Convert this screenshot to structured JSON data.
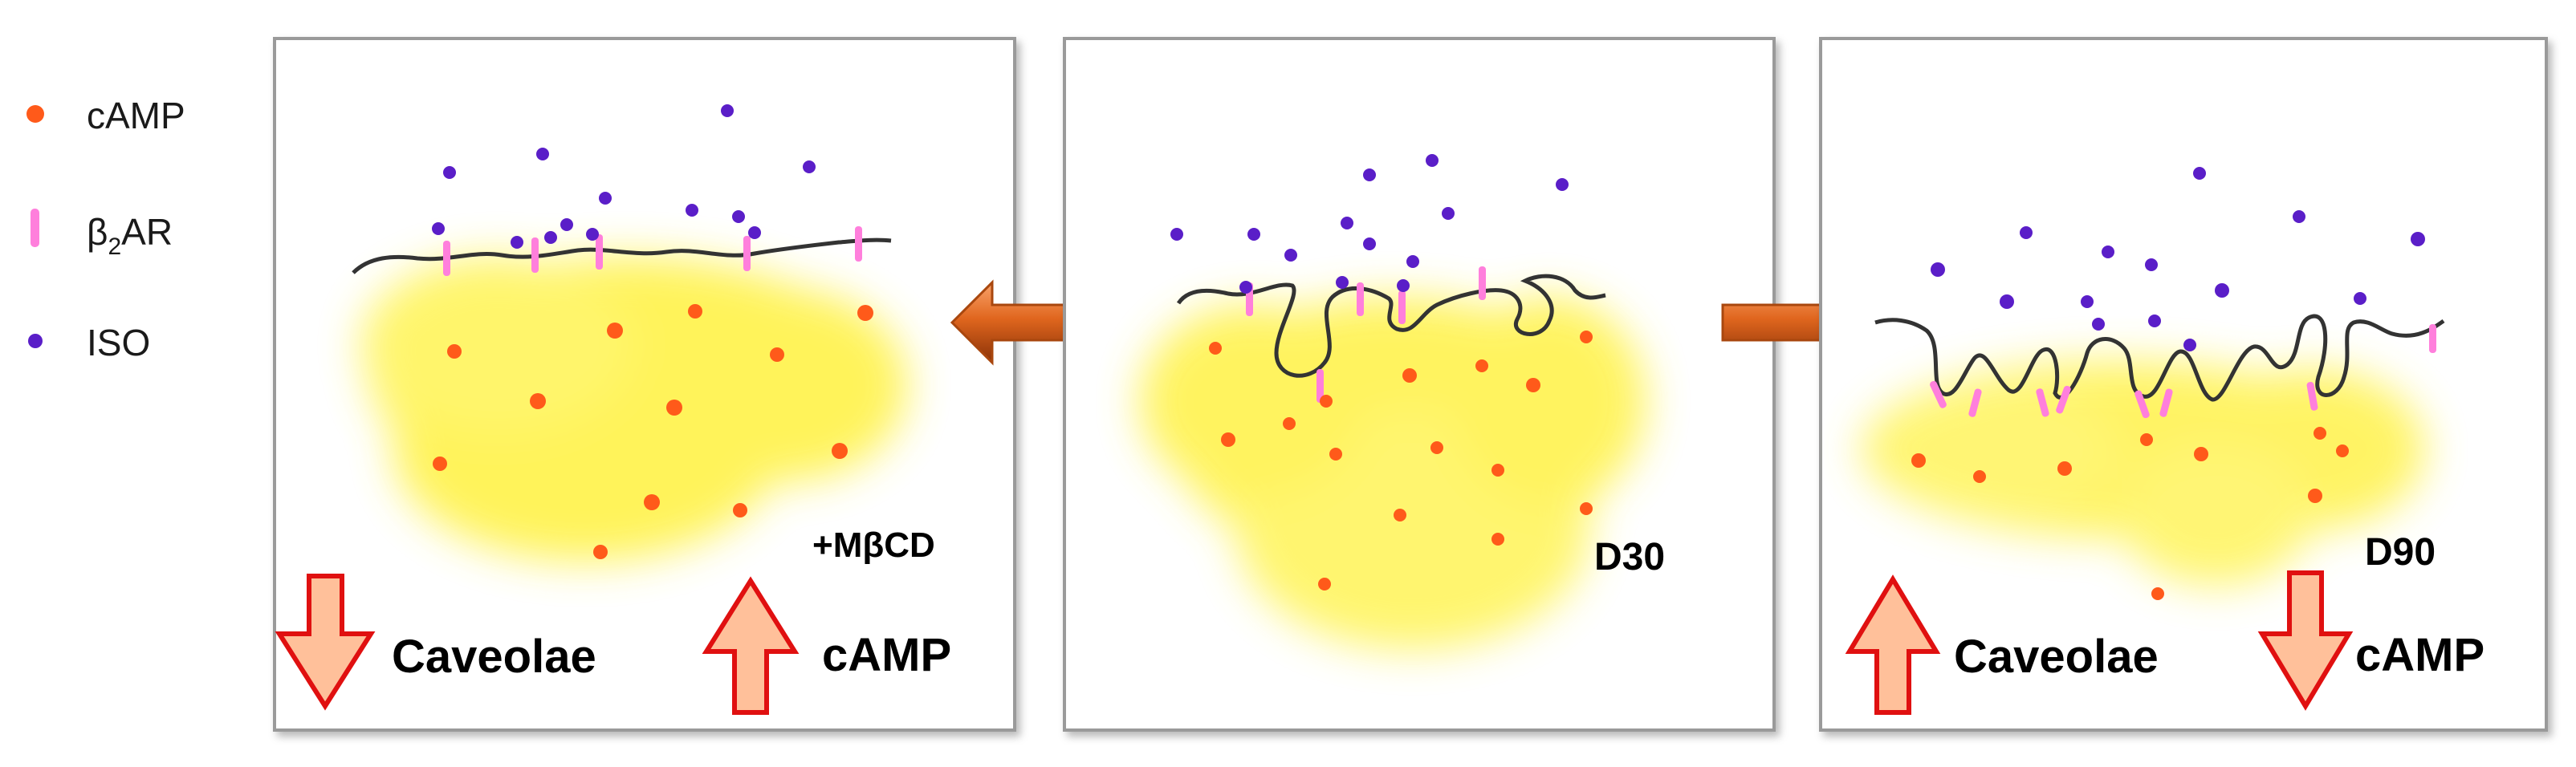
{
  "legend": {
    "camp_label": "cAMP",
    "b2ar_prefix": "β",
    "b2ar_sub": "2",
    "b2ar_suffix": "AR",
    "iso_label": "ISO"
  },
  "panels": {
    "left": {
      "condition_label": "+MβCD",
      "caveolae_label": "Caveolae",
      "camp_label": "cAMP",
      "caveolae_direction": "down",
      "camp_direction": "up"
    },
    "middle": {
      "condition_label": "D30"
    },
    "right": {
      "condition_label": "D90",
      "caveolae_label": "Caveolae",
      "camp_label": "cAMP",
      "caveolae_direction": "up",
      "camp_direction": "down"
    }
  },
  "colors": {
    "camp_dot": "#ff5a1a",
    "b2ar": "#ff7fdc",
    "iso_dot": "#5a1ec8",
    "membrane": "#333333",
    "cell_fill": "#fff24a",
    "panel_border": "#9a9a9a",
    "big_arrow_fill": "#ffc09a",
    "big_arrow_stroke": "#e01010",
    "transition_arrow": "#e0661e"
  },
  "icons": {
    "transition_left": "arrow-left-icon",
    "transition_right": "arrow-right-icon",
    "up_arrow": "arrow-up-icon",
    "down_arrow": "arrow-down-icon"
  }
}
